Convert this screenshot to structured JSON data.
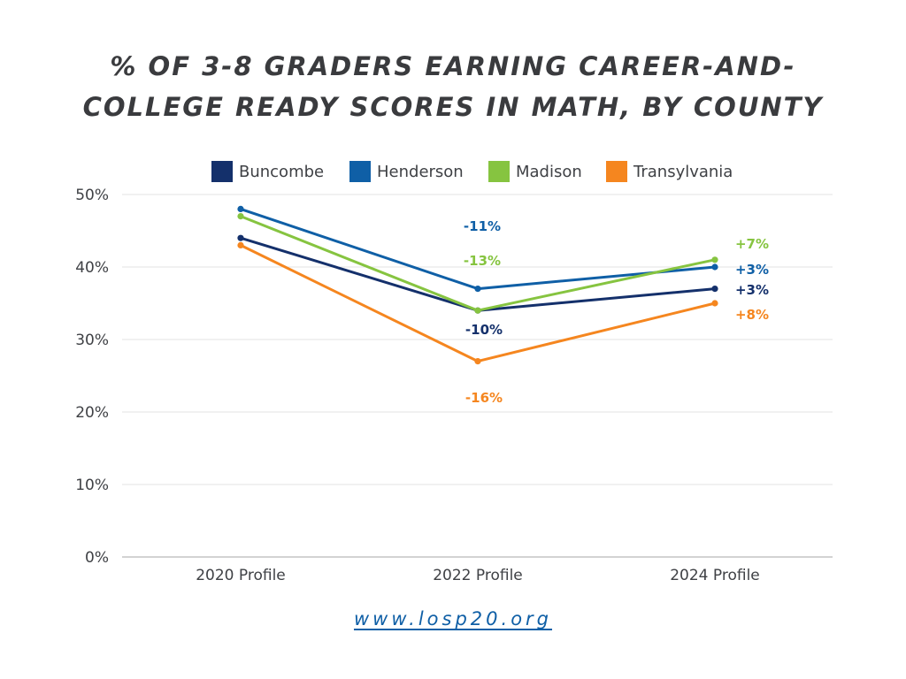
{
  "title": "% OF 3-8 GRADERS EARNING CAREER-AND-COLLEGE READY SCORES IN MATH, BY COUNTY",
  "source_link": "www.losp20.org",
  "chart_data": {
    "type": "line",
    "title": "% OF 3-8 GRADERS EARNING CAREER-AND-COLLEGE READY SCORES IN MATH, BY COUNTY",
    "categories": [
      "2020 Profile",
      "2022 Profile",
      "2024 Profile"
    ],
    "ylim": [
      0,
      50
    ],
    "yticks": [
      0,
      10,
      20,
      30,
      40,
      50
    ],
    "ytick_labels": [
      "0%",
      "10%",
      "20%",
      "30%",
      "40%",
      "50%"
    ],
    "xlabel": "",
    "ylabel": "",
    "grid": true,
    "legend_position": "top",
    "series": [
      {
        "name": "Buncombe",
        "color": "#14306b",
        "values": [
          44,
          34,
          37
        ],
        "labels": [
          "",
          "-10%",
          "+3%"
        ]
      },
      {
        "name": "Henderson",
        "color": "#0f5fa6",
        "values": [
          48,
          37,
          40
        ],
        "labels": [
          "",
          "-11%",
          "+3%"
        ]
      },
      {
        "name": "Madison",
        "color": "#86c440",
        "values": [
          47,
          34,
          41
        ],
        "labels": [
          "",
          "-13%",
          "+7%"
        ]
      },
      {
        "name": "Transylvania",
        "color": "#f5861f",
        "values": [
          43,
          27,
          35
        ],
        "labels": [
          "",
          "-16%",
          "+8%"
        ]
      }
    ]
  }
}
